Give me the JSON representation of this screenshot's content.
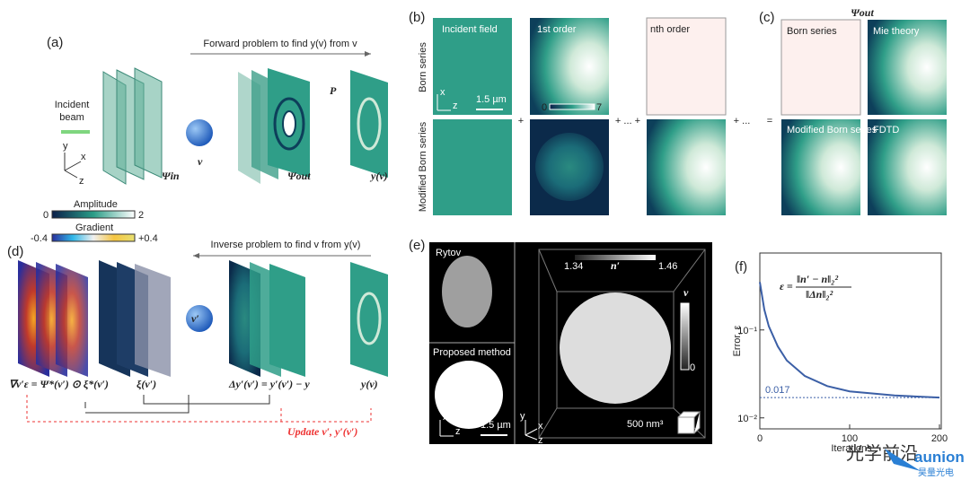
{
  "panel_a": {
    "label": "(a)",
    "forward": "Forward problem to find y(v) from v",
    "incident_line1": "Incident",
    "incident_line2": "beam",
    "psi_in": "Ψin",
    "v": "v",
    "psi_out": "Ψout",
    "p": "P",
    "y_v": "y(v)",
    "axis_x": "x",
    "axis_y": "y",
    "axis_z": "z"
  },
  "colorbars": {
    "amplitude": "Amplitude",
    "amp_min": "0",
    "amp_max": "2",
    "gradient": "Gradient",
    "grad_min": "-0.4",
    "grad_max": "+0.4"
  },
  "panel_b": {
    "label": "(b)",
    "row1": "Born series",
    "row2": "Modified Born series",
    "incident": "Incident field",
    "first": "1st order",
    "nth": "nth order",
    "scale": "1.5 µm",
    "cb_min": "0",
    "cb_max": "7",
    "plus1": "+",
    "plus2": "+ ... +",
    "plus3": "+ ...",
    "equals": "=",
    "axis_x": "x",
    "axis_z": "z"
  },
  "panel_c": {
    "label": "(c)",
    "title": "Ψout",
    "born": "Born series",
    "mie": "Mie theory",
    "modified": "Modified Born series",
    "fdtd": "FDTD"
  },
  "panel_d": {
    "label": "(d)",
    "inverse": "Inverse problem to find v from y(v)",
    "v_prime": "v′",
    "gradient_eq": "∇v′ε = Ψ*(v′) ⊙ ξ*(v′)",
    "xi": "ξ(v′)",
    "delta": "Δy′(v′) = y′(v′) − y",
    "y_v": "y(v)",
    "update": "Update  v′, y′(v′)"
  },
  "panel_e": {
    "label": "(e)",
    "rytov": "Rytov",
    "proposed": "Proposed method",
    "scale": "1.5 µm",
    "cb_min": "1.34",
    "cb_name": "n′",
    "cb_max": "1.46",
    "v": "v",
    "v_min": "0",
    "cube": "500 nm³",
    "axis_x": "x",
    "axis_y": "y",
    "axis_z": "z"
  },
  "chart_data": {
    "type": "line",
    "label": "(f)",
    "formula_lhs": "ε =",
    "formula_num": "‖n′ − n‖₂²",
    "formula_den": "‖Δn‖₂²",
    "ylabel": "Error, ε",
    "xlabel": "Iterations",
    "color": "#3b5fa6",
    "log_y": true,
    "x": [
      0,
      5,
      10,
      20,
      30,
      50,
      75,
      100,
      150,
      200
    ],
    "values": [
      0.35,
      0.17,
      0.11,
      0.065,
      0.045,
      0.03,
      0.023,
      0.02,
      0.018,
      0.017
    ],
    "xlim": [
      0,
      200
    ],
    "ylim": [
      0.0075,
      0.75
    ],
    "xticks": [
      0,
      100,
      200
    ],
    "yticks": [
      {
        "value": 0.01,
        "label": "10⁻²"
      },
      {
        "value": 0.1,
        "label": "10⁻¹"
      }
    ],
    "reference_line": 0.017
  },
  "watermark": {
    "brand": "光学前沿",
    "company": "aunion",
    "company_cn": "昊量光电"
  }
}
